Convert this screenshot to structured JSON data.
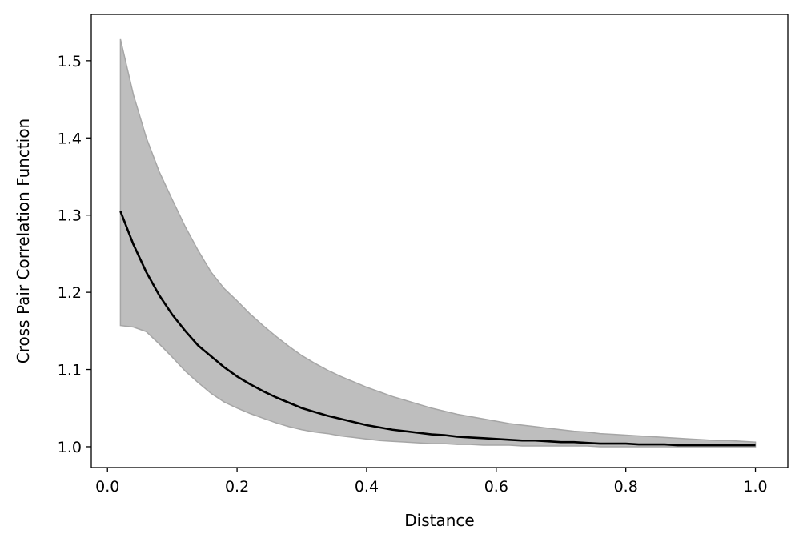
{
  "chart_data": {
    "type": "line",
    "title": "",
    "xlabel": "Distance",
    "ylabel": "Cross Pair Correlation Function",
    "xlim": [
      -0.025,
      1.05
    ],
    "ylim": [
      0.973,
      1.56
    ],
    "grid": false,
    "x_ticks": [
      0.0,
      0.2,
      0.4,
      0.6,
      0.8,
      1.0
    ],
    "x_tick_labels": [
      "0.0",
      "0.2",
      "0.4",
      "0.6",
      "0.8",
      "1.0"
    ],
    "y_ticks": [
      1.0,
      1.1,
      1.2,
      1.3,
      1.4,
      1.5
    ],
    "y_tick_labels": [
      "1.0",
      "1.1",
      "1.2",
      "1.3",
      "1.4",
      "1.5"
    ],
    "colors": {
      "line": "#000000",
      "band_fill": "#bebebe",
      "band_edge": "#a6a6a6"
    },
    "x": [
      0.02,
      0.04,
      0.06,
      0.08,
      0.1,
      0.12,
      0.14,
      0.16,
      0.18,
      0.2,
      0.22,
      0.24,
      0.26,
      0.28,
      0.3,
      0.32,
      0.34,
      0.36,
      0.38,
      0.4,
      0.42,
      0.44,
      0.46,
      0.48,
      0.5,
      0.52,
      0.54,
      0.56,
      0.58,
      0.6,
      0.62,
      0.64,
      0.66,
      0.68,
      0.7,
      0.72,
      0.74,
      0.76,
      0.78,
      0.8,
      0.82,
      0.84,
      0.86,
      0.88,
      0.9,
      0.92,
      0.94,
      0.96,
      0.98,
      1.0
    ],
    "series": [
      {
        "values": [
          1.305,
          1.262,
          1.226,
          1.196,
          1.171,
          1.15,
          1.131,
          1.117,
          1.103,
          1.091,
          1.081,
          1.072,
          1.064,
          1.057,
          1.05,
          1.045,
          1.04,
          1.036,
          1.032,
          1.028,
          1.025,
          1.022,
          1.02,
          1.018,
          1.016,
          1.015,
          1.013,
          1.012,
          1.011,
          1.01,
          1.009,
          1.008,
          1.008,
          1.007,
          1.006,
          1.006,
          1.005,
          1.004,
          1.004,
          1.004,
          1.003,
          1.003,
          1.003,
          1.002,
          1.002,
          1.002,
          1.002,
          1.002,
          1.002,
          1.002
        ]
      }
    ],
    "band": {
      "upper": [
        1.528,
        1.456,
        1.4,
        1.356,
        1.32,
        1.285,
        1.254,
        1.226,
        1.205,
        1.189,
        1.172,
        1.157,
        1.143,
        1.13,
        1.118,
        1.108,
        1.099,
        1.091,
        1.084,
        1.077,
        1.071,
        1.065,
        1.06,
        1.055,
        1.05,
        1.046,
        1.042,
        1.039,
        1.036,
        1.033,
        1.03,
        1.028,
        1.026,
        1.024,
        1.022,
        1.02,
        1.019,
        1.017,
        1.016,
        1.015,
        1.014,
        1.013,
        1.012,
        1.011,
        1.01,
        1.009,
        1.008,
        1.008,
        1.007,
        1.006
      ],
      "lower": [
        1.157,
        1.155,
        1.149,
        1.133,
        1.116,
        1.098,
        1.083,
        1.069,
        1.058,
        1.05,
        1.043,
        1.037,
        1.031,
        1.026,
        1.022,
        1.019,
        1.017,
        1.014,
        1.012,
        1.01,
        1.008,
        1.007,
        1.006,
        1.005,
        1.004,
        1.004,
        1.003,
        1.003,
        1.002,
        1.002,
        1.002,
        1.001,
        1.001,
        1.001,
        1.001,
        1.001,
        1.001,
        1.0,
        1.0,
        1.0,
        1.0,
        1.0,
        1.0,
        1.0,
        1.0,
        1.0,
        1.0,
        1.0,
        1.0,
        1.0
      ]
    }
  }
}
